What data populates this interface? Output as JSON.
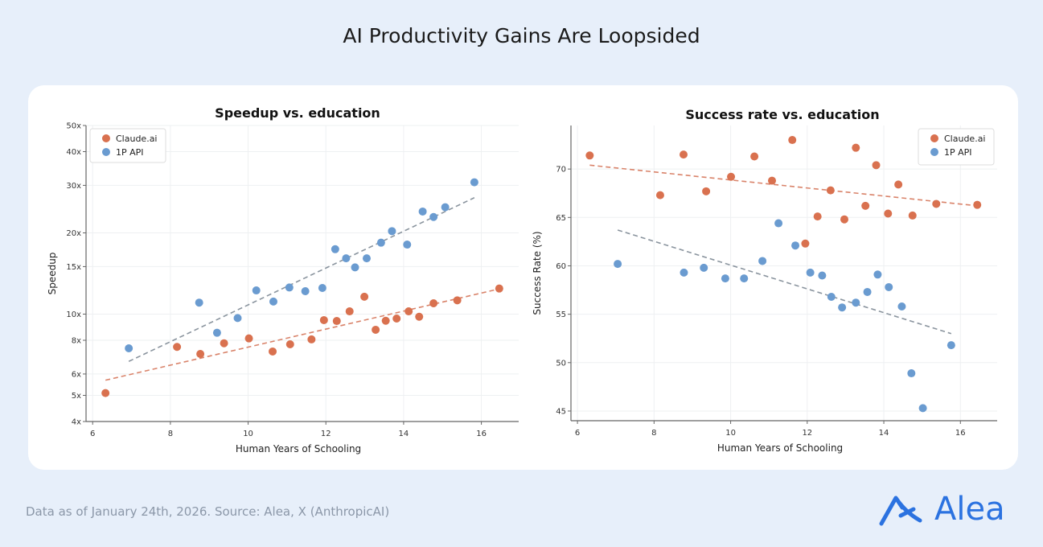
{
  "header": {
    "title": "AI Productivity Gains Are Loopsided"
  },
  "footer": {
    "source": "Data as of January 24th, 2026. Source: Alea, X (AnthropicAI)",
    "logo_text": "Alea"
  },
  "colors": {
    "claude": "#d9714f",
    "api": "#6a9bd0",
    "background": "#e7effa",
    "brand": "#2b72e0"
  },
  "chart_data": [
    {
      "type": "scatter",
      "title": "Speedup vs. education",
      "xlabel": "Human Years of Schooling",
      "ylabel": "Speedup",
      "xlim": [
        5.83,
        16.96
      ],
      "ylim": [
        4,
        50
      ],
      "yscale": "log",
      "xticks": [
        6,
        8,
        10,
        12,
        14,
        16
      ],
      "yticks": [
        4,
        5,
        6,
        8,
        10,
        15,
        20,
        30,
        40,
        50
      ],
      "ytick_labels": [
        "4x",
        "5x",
        "6x",
        "8x",
        "10x",
        "15x",
        "20x",
        "30x",
        "40x",
        "50x"
      ],
      "grid": true,
      "legend": "top-left",
      "series": [
        {
          "name": "Claude.ai",
          "color": "#d9714f",
          "x": [
            6.33,
            8.17,
            8.77,
            9.38,
            10.02,
            10.63,
            11.08,
            11.63,
            11.95,
            12.28,
            12.61,
            12.99,
            13.28,
            13.54,
            13.82,
            14.13,
            14.4,
            14.77,
            15.38,
            16.46
          ],
          "y": [
            5.1,
            7.56,
            7.12,
            7.8,
            8.13,
            7.27,
            7.73,
            8.06,
            9.5,
            9.43,
            10.24,
            11.6,
            8.75,
            9.45,
            9.63,
            10.24,
            9.78,
            10.97,
            11.25,
            12.44
          ],
          "trend": {
            "x": [
              6.33,
              16.46
            ],
            "y": [
              5.69,
              12.4
            ]
          }
        },
        {
          "name": "1P API",
          "color": "#6a9bd0",
          "x": [
            6.93,
            8.74,
            9.2,
            9.73,
            10.21,
            10.65,
            11.06,
            11.47,
            11.91,
            12.24,
            12.52,
            12.75,
            13.05,
            13.42,
            13.7,
            14.09,
            14.49,
            14.77,
            15.07,
            15.82
          ],
          "y": [
            7.47,
            11.03,
            8.53,
            9.67,
            12.24,
            11.13,
            12.55,
            12.16,
            12.5,
            17.4,
            16.1,
            14.9,
            16.1,
            18.4,
            20.3,
            18.1,
            24.0,
            22.9,
            24.9,
            30.8
          ],
          "trend": {
            "x": [
              6.93,
              15.82
            ],
            "y": [
              6.68,
              27.0
            ]
          }
        }
      ]
    },
    {
      "type": "scatter",
      "title": "Success rate vs. education",
      "xlabel": "Human Years of Schooling",
      "ylabel": "Success Rate (%)",
      "xlim": [
        5.83,
        16.96
      ],
      "ylim": [
        44,
        74.5
      ],
      "yscale": "linear",
      "xticks": [
        6,
        8,
        10,
        12,
        14,
        16
      ],
      "yticks": [
        45,
        50,
        55,
        60,
        65,
        70
      ],
      "ytick_labels": [
        "45",
        "50",
        "55",
        "60",
        "65",
        "70"
      ],
      "grid": true,
      "legend": "top-right",
      "series": [
        {
          "name": "Claude.ai",
          "color": "#d9714f",
          "x": [
            6.32,
            8.16,
            8.77,
            9.36,
            10.01,
            10.62,
            11.08,
            11.61,
            11.95,
            12.27,
            12.61,
            12.97,
            13.27,
            13.52,
            13.8,
            14.11,
            14.38,
            14.75,
            15.37,
            16.44
          ],
          "y": [
            71.4,
            67.3,
            71.5,
            67.7,
            69.2,
            71.3,
            68.8,
            73.0,
            62.3,
            65.1,
            67.8,
            64.8,
            72.2,
            66.2,
            70.4,
            65.4,
            68.4,
            65.2,
            66.4,
            66.3
          ],
          "trend": {
            "x": [
              6.32,
              16.44
            ],
            "y": [
              70.4,
              66.2
            ]
          }
        },
        {
          "name": "1P API",
          "color": "#6a9bd0",
          "x": [
            7.05,
            8.78,
            9.3,
            9.86,
            10.35,
            10.83,
            11.25,
            11.69,
            12.08,
            12.39,
            12.63,
            12.91,
            13.27,
            13.57,
            13.84,
            14.13,
            14.47,
            14.72,
            15.02,
            15.76
          ],
          "y": [
            60.2,
            59.3,
            59.8,
            58.7,
            58.7,
            60.5,
            64.4,
            62.1,
            59.3,
            59.0,
            56.8,
            55.7,
            56.2,
            57.3,
            59.1,
            57.8,
            55.8,
            48.9,
            45.3,
            51.8
          ],
          "trend": {
            "x": [
              7.05,
              15.76
            ],
            "y": [
              63.7,
              53.0
            ]
          }
        }
      ]
    }
  ]
}
